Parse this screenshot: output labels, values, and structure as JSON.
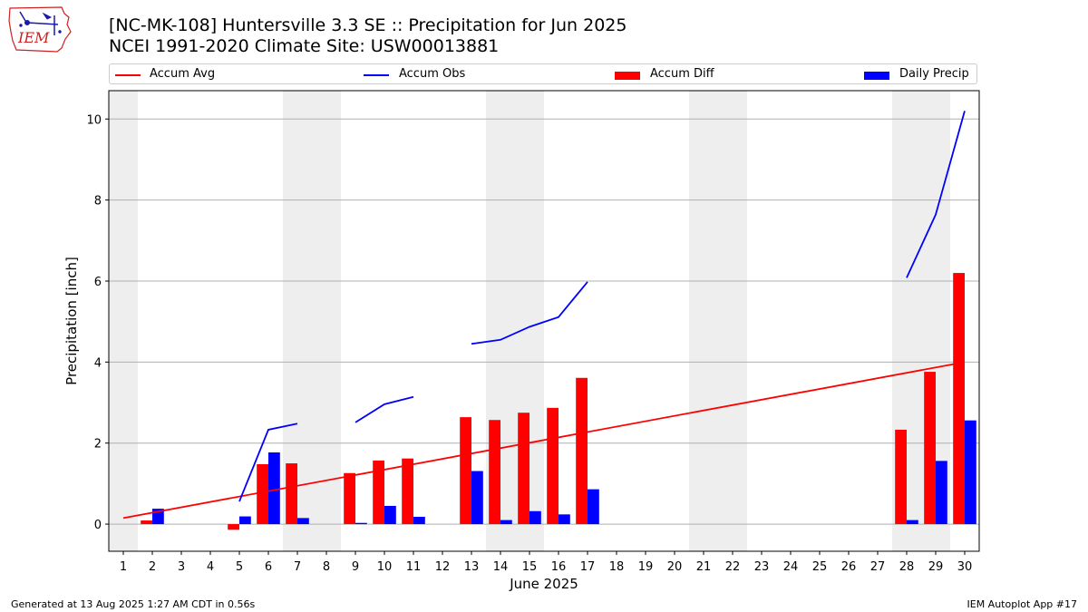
{
  "header": {
    "title": "[NC-MK-108] Huntersville 3.3 SE :: Precipitation for Jun 2025",
    "subtitle": "NCEI 1991-2020 Climate Site: USW00013881",
    "logo_text": "IEM"
  },
  "footer": {
    "generated": "Generated at 13 Aug 2025 1:27 AM CDT in 0.56s",
    "app": "IEM Autoplot App #17"
  },
  "colors": {
    "avg": "#ff0000",
    "obs": "#0000ff",
    "diff": "#ff0000",
    "daily": "#0000ff",
    "weekend": "#eeeeee",
    "grid": "#b0b0b0"
  },
  "chart_data": {
    "type": "bar",
    "xlabel": "June 2025",
    "ylabel": "Precipitation [inch]",
    "ylim": [
      -0.67,
      10.7
    ],
    "yticks": [
      0,
      2,
      4,
      6,
      8,
      10
    ],
    "xticks": [
      1,
      2,
      3,
      4,
      5,
      6,
      7,
      8,
      9,
      10,
      11,
      12,
      13,
      14,
      15,
      16,
      17,
      18,
      19,
      20,
      21,
      22,
      23,
      24,
      25,
      26,
      27,
      28,
      29,
      30
    ],
    "weekend_days": [
      1,
      7,
      8,
      14,
      15,
      21,
      22,
      28,
      29
    ],
    "grid": "horizontal",
    "legend_position": "top",
    "legend": [
      {
        "label": "Accum Avg",
        "kind": "line",
        "color": "#ff0000"
      },
      {
        "label": "Accum Obs",
        "kind": "line",
        "color": "#0000ff"
      },
      {
        "label": "Accum Diff",
        "kind": "bar",
        "color": "#ff0000"
      },
      {
        "label": "Daily Precip",
        "kind": "bar",
        "color": "#0000ff"
      }
    ],
    "accum_avg": {
      "x": [
        1,
        30
      ],
      "y": [
        0.15,
        4.0
      ]
    },
    "accum_obs_segments": [
      {
        "x": [
          5,
          6,
          7
        ],
        "y": [
          0.56,
          2.33,
          2.48
        ]
      },
      {
        "x": [
          9,
          10,
          11
        ],
        "y": [
          2.51,
          2.96,
          3.14
        ]
      },
      {
        "x": [
          13,
          14,
          15,
          16,
          17
        ],
        "y": [
          4.45,
          4.55,
          4.87,
          5.11,
          5.98
        ]
      },
      {
        "x": [
          28,
          29,
          30
        ],
        "y": [
          6.08,
          7.64,
          10.2
        ]
      }
    ],
    "accum_diff": [
      {
        "day": 2,
        "value": 0.09
      },
      {
        "day": 5,
        "value": -0.14
      },
      {
        "day": 6,
        "value": 1.48
      },
      {
        "day": 7,
        "value": 1.5
      },
      {
        "day": 9,
        "value": 1.26
      },
      {
        "day": 10,
        "value": 1.57
      },
      {
        "day": 11,
        "value": 1.62
      },
      {
        "day": 13,
        "value": 2.64
      },
      {
        "day": 14,
        "value": 2.57
      },
      {
        "day": 15,
        "value": 2.75
      },
      {
        "day": 16,
        "value": 2.87
      },
      {
        "day": 17,
        "value": 3.61
      },
      {
        "day": 28,
        "value": 2.33
      },
      {
        "day": 29,
        "value": 3.76
      },
      {
        "day": 30,
        "value": 6.2
      }
    ],
    "daily_precip": [
      {
        "day": 2,
        "value": 0.38
      },
      {
        "day": 5,
        "value": 0.19
      },
      {
        "day": 6,
        "value": 1.77
      },
      {
        "day": 7,
        "value": 0.15
      },
      {
        "day": 9,
        "value": 0.03
      },
      {
        "day": 10,
        "value": 0.45
      },
      {
        "day": 11,
        "value": 0.18
      },
      {
        "day": 13,
        "value": 1.31
      },
      {
        "day": 14,
        "value": 0.1
      },
      {
        "day": 15,
        "value": 0.32
      },
      {
        "day": 16,
        "value": 0.24
      },
      {
        "day": 17,
        "value": 0.86
      },
      {
        "day": 28,
        "value": 0.1
      },
      {
        "day": 29,
        "value": 1.56
      },
      {
        "day": 30,
        "value": 2.56
      }
    ]
  }
}
